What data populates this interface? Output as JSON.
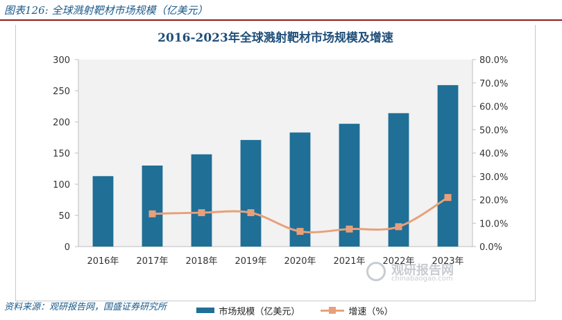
{
  "figure": {
    "caption": "图表126:  全球溅射靶材市场规模（亿美元）",
    "source": "资料来源：观研报告网，国盛证券研究所"
  },
  "watermark": {
    "text": "观研报告网",
    "url_text": "chinabaogao.com"
  },
  "colors": {
    "bar": "#1f6f97",
    "line": "#e8a07a",
    "title": "#1f4e79",
    "plot_bg": "#f2f2f2",
    "caption": "#1a5a8a"
  },
  "chart_data": {
    "type": "bar",
    "title": "2016-2023年全球溅射靶材市场规模及增速",
    "categories": [
      "2016年",
      "2017年",
      "2018年",
      "2019年",
      "2020年",
      "2021年",
      "2022年",
      "2023年"
    ],
    "series": [
      {
        "name": "市场规模（亿美元）",
        "type": "bar",
        "axis": "left",
        "values": [
          113,
          130,
          148,
          171,
          183,
          197,
          214,
          259
        ]
      },
      {
        "name": "增速（%）",
        "type": "line",
        "axis": "right",
        "values": [
          null,
          14.0,
          14.5,
          14.5,
          6.5,
          7.5,
          8.5,
          21.0
        ]
      }
    ],
    "left_axis": {
      "ylim": [
        0,
        300
      ],
      "ticks": [
        "0",
        "50",
        "100",
        "150",
        "200",
        "250",
        "300"
      ]
    },
    "right_axis": {
      "ylim": [
        0,
        80
      ],
      "ticks": [
        "0.0%",
        "10.0%",
        "20.0%",
        "30.0%",
        "40.0%",
        "50.0%",
        "60.0%",
        "70.0%",
        "80.0%"
      ]
    },
    "grid": false,
    "legend": "bottom"
  }
}
